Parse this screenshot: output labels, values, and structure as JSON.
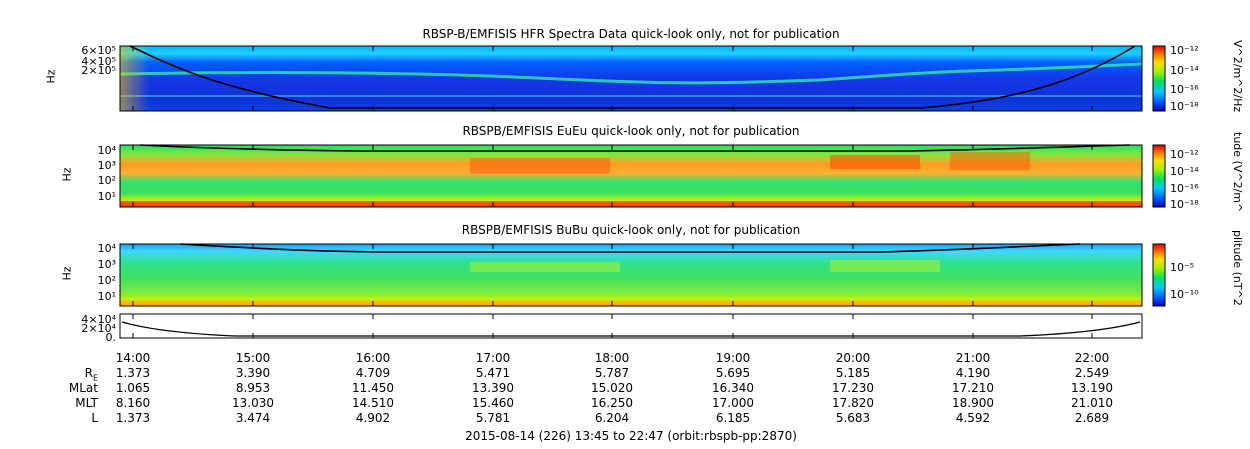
{
  "chart_data": {
    "type": "heatmap",
    "panels": [
      {
        "id": "hfr",
        "title": "RBSP-B/EMFISIS  HFR Spectra Data quick-look only, not for publication",
        "ylabel": "Hz",
        "yticks": [
          "6×10⁵",
          "4×10⁵",
          "2×10⁵"
        ],
        "colorbar_title": "V^2/m^2/Hz",
        "colorbar_ticks": [
          "10⁻¹²",
          "10⁻¹⁴",
          "10⁻¹⁶",
          "10⁻¹⁸"
        ]
      },
      {
        "id": "eueu",
        "title": "RBSPB/EMFISIS  EuEu quick-look only, not for publication",
        "ylabel": "Hz",
        "yticks": [
          "10⁴",
          "10³",
          "10²",
          "10¹"
        ],
        "colorbar_title": "tude (V^2/m^",
        "colorbar_ticks": [
          "10⁻¹²",
          "10⁻¹⁴",
          "10⁻¹⁶",
          "10⁻¹⁸"
        ]
      },
      {
        "id": "bubu",
        "title": "RBSPB/EMFISIS  BuBu quick-look only, not for publication",
        "ylabel": "Hz",
        "yticks": [
          "10⁴",
          "10³",
          "10²",
          "10¹"
        ],
        "colorbar_title": "plitude (nT^2",
        "colorbar_ticks": [
          "10⁻⁵",
          "10⁻¹⁰"
        ]
      },
      {
        "id": "line",
        "yticks": [
          "4×10⁴",
          "2×10⁴",
          "0."
        ]
      }
    ],
    "time_labels": [
      "14:00",
      "15:00",
      "16:00",
      "17:00",
      "18:00",
      "19:00",
      "20:00",
      "21:00",
      "22:00"
    ],
    "ephemeris": [
      {
        "label": "R",
        "sub": "E",
        "values": [
          "1.373",
          "3.390",
          "4.709",
          "5.471",
          "5.787",
          "5.695",
          "5.185",
          "4.190",
          "2.549"
        ]
      },
      {
        "label": "MLat",
        "sub": "",
        "values": [
          "1.065",
          "8.953",
          "11.450",
          "13.390",
          "15.020",
          "16.340",
          "17.230",
          "17.210",
          "13.190"
        ]
      },
      {
        "label": "MLT",
        "sub": "",
        "values": [
          "8.160",
          "13.030",
          "14.510",
          "15.460",
          "16.250",
          "17.000",
          "17.820",
          "18.900",
          "21.010"
        ]
      },
      {
        "label": "L",
        "sub": "",
        "values": [
          "1.373",
          "3.474",
          "4.902",
          "5.781",
          "6.204",
          "6.185",
          "5.683",
          "4.592",
          "2.689"
        ]
      }
    ],
    "footer": "2015-08-14 (226) 13:45 to 22:47 (orbit:rbspb-pp:2870)"
  }
}
